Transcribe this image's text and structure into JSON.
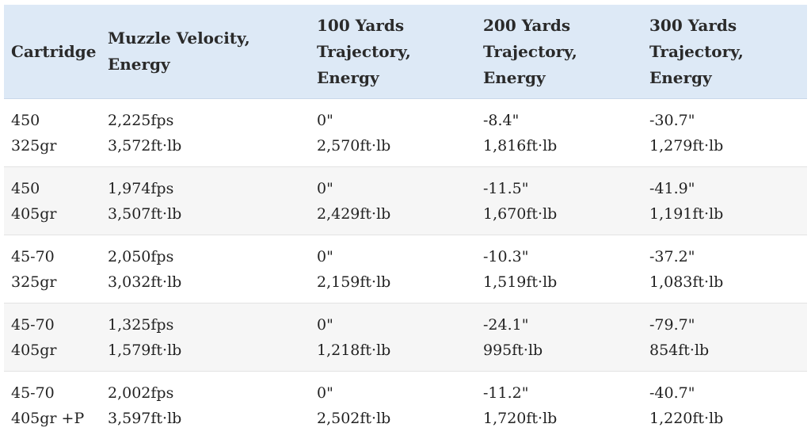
{
  "table": {
    "headers": [
      [
        "Cartridge"
      ],
      [
        "Muzzle Velocity,",
        "Energy"
      ],
      [
        "100 Yards",
        "Trajectory,",
        "Energy"
      ],
      [
        "200 Yards",
        "Trajectory,",
        "Energy"
      ],
      [
        "300 Yards",
        "Trajectory,",
        "Energy"
      ]
    ],
    "rows": [
      {
        "cartridge": [
          "450",
          "325gr"
        ],
        "muzzle": [
          "2,225fps",
          "3,572ft·lb"
        ],
        "y100": [
          "0\"",
          "2,570ft·lb"
        ],
        "y200": [
          "-8.4\"",
          "1,816ft·lb"
        ],
        "y300": [
          "-30.7\"",
          "1,279ft·lb"
        ]
      },
      {
        "cartridge": [
          "450",
          "405gr"
        ],
        "muzzle": [
          "1,974fps",
          "3,507ft·lb"
        ],
        "y100": [
          "0\"",
          "2,429ft·lb"
        ],
        "y200": [
          "-11.5\"",
          "1,670ft·lb"
        ],
        "y300": [
          "-41.9\"",
          "1,191ft·lb"
        ]
      },
      {
        "cartridge": [
          "45-70",
          "325gr"
        ],
        "muzzle": [
          "2,050fps",
          "3,032ft·lb"
        ],
        "y100": [
          "0\"",
          "2,159ft·lb"
        ],
        "y200": [
          "-10.3\"",
          "1,519ft·lb"
        ],
        "y300": [
          "-37.2\"",
          "1,083ft·lb"
        ]
      },
      {
        "cartridge": [
          "45-70",
          "405gr"
        ],
        "muzzle": [
          "1,325fps",
          "1,579ft·lb"
        ],
        "y100": [
          "0\"",
          "1,218ft·lb"
        ],
        "y200": [
          "-24.1\"",
          "995ft·lb"
        ],
        "y300": [
          "-79.7\"",
          "854ft·lb"
        ]
      },
      {
        "cartridge": [
          "45-70",
          "405gr +P"
        ],
        "muzzle": [
          "2,002fps",
          "3,597ft·lb"
        ],
        "y100": [
          "0\"",
          "2,502ft·lb"
        ],
        "y200": [
          "-11.2\"",
          "1,720ft·lb"
        ],
        "y300": [
          "-40.7\"",
          "1,220ft·lb"
        ]
      }
    ]
  }
}
